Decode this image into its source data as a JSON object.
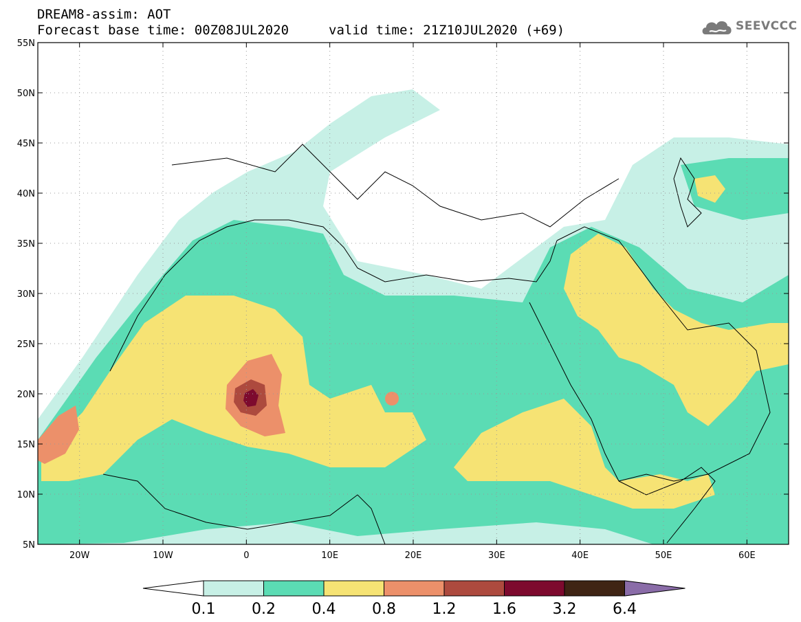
{
  "header": {
    "title": "DREAM8-assim: AOT",
    "base_time": "Forecast base time: 00Z08JUL2020",
    "valid_time": "valid time: 21Z10JUL2020 (+69)",
    "logo_text": "SEEVCCC"
  },
  "map": {
    "lat_labels": [
      "55N",
      "50N",
      "45N",
      "40N",
      "35N",
      "30N",
      "25N",
      "20N",
      "15N",
      "10N",
      "5N"
    ],
    "lon_labels": [
      "20W",
      "10W",
      "0",
      "10E",
      "20E",
      "30E",
      "40E",
      "50E",
      "60E"
    ],
    "lat_range": [
      5,
      55
    ],
    "lon_range": [
      -25,
      65
    ],
    "grid": "dotted"
  },
  "colorbar": {
    "labels": [
      "0.1",
      "0.2",
      "0.4",
      "0.8",
      "1.2",
      "1.6",
      "3.2",
      "6.4"
    ],
    "colors": [
      "#ffffff",
      "#c7f0e6",
      "#5bdcb4",
      "#f6e374",
      "#ec906a",
      "#ad4a3e",
      "#7d0a2e",
      "#3f2414",
      "#8a6ca8"
    ]
  }
}
